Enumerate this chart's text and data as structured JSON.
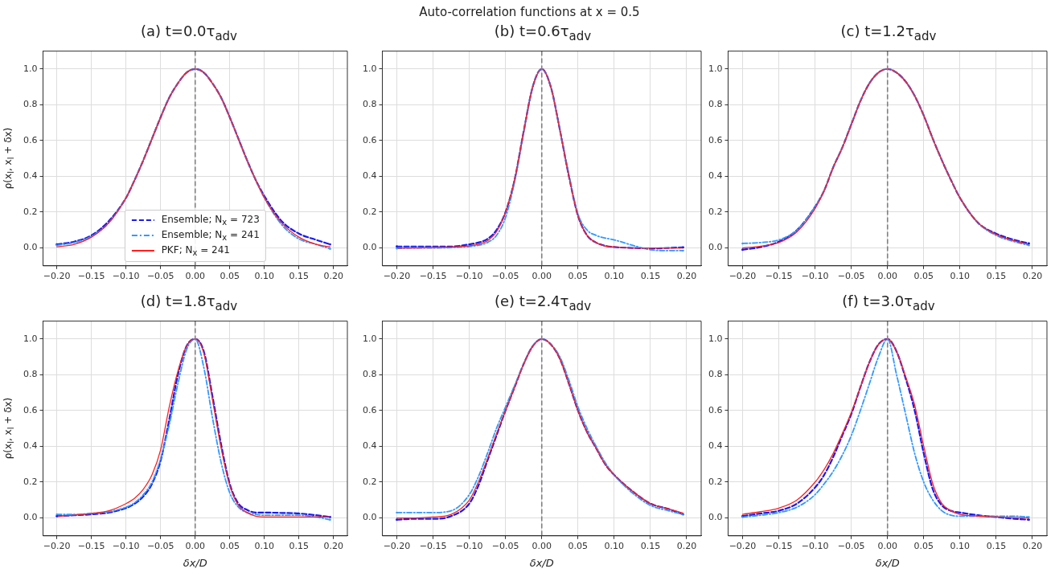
{
  "chart_data": [
    {
      "type": "line",
      "title": "(a) t=0.0τ$_{adv}$",
      "ylabel": "ρ(x$_{l}$, x$_{l}$ + δx)",
      "annotations": [
        "Auto-correlation functions at x = 0.5"
      ],
      "legend": "bottom",
      "grid": true,
      "xlim": [
        -0.22,
        0.22
      ],
      "ylim": [
        -0.1,
        1.1
      ],
      "xticks": [
        {
          "value": -0.2,
          "label": "−0.20"
        },
        {
          "value": -0.15,
          "label": "−0.15"
        },
        {
          "value": -0.1,
          "label": "−0.10"
        },
        {
          "value": -0.05,
          "label": "−0.05"
        },
        {
          "value": 0,
          "label": "0.00"
        },
        {
          "value": 0.05,
          "label": "0.05"
        },
        {
          "value": 0.1,
          "label": "0.10"
        },
        {
          "value": 0.15,
          "label": "0.15"
        },
        {
          "value": 0.2,
          "label": "0.20"
        }
      ],
      "yticks": [
        {
          "value": 0,
          "label": "0.0"
        },
        {
          "value": 0.2,
          "label": "0.2"
        },
        {
          "value": 0.4,
          "label": "0.4"
        },
        {
          "value": 0.6,
          "label": "0.6"
        },
        {
          "value": 0.8,
          "label": "0.8"
        },
        {
          "value": 1,
          "label": "1.0"
        }
      ],
      "ref_lines": [
        {
          "axis": "x",
          "value": 0,
          "color": "#808080",
          "line_style": "dashed"
        }
      ],
      "x": [
        -0.2,
        -0.175,
        -0.15,
        -0.125,
        -0.1,
        -0.0875,
        -0.075,
        -0.0625,
        -0.05,
        -0.0375,
        -0.025,
        -0.0125,
        0,
        0.0125,
        0.025,
        0.0375,
        0.05,
        0.0625,
        0.075,
        0.0875,
        0.1,
        0.125,
        0.15,
        0.175,
        0.195
      ],
      "series": [
        {
          "name": "Ensemble; N$_{x}$ = 723",
          "color": "#1a1aee",
          "line_style": "dashed",
          "values": [
            0.02,
            0.035,
            0.07,
            0.15,
            0.28,
            0.38,
            0.49,
            0.61,
            0.73,
            0.84,
            0.92,
            0.98,
            1,
            0.98,
            0.92,
            0.84,
            0.73,
            0.61,
            0.49,
            0.38,
            0.29,
            0.15,
            0.08,
            0.045,
            0.02
          ]
        },
        {
          "name": "Ensemble; N$_{x}$ = 241",
          "color": "#3399ff",
          "line_style": "dashdot",
          "values": [
            0.015,
            0.03,
            0.065,
            0.14,
            0.28,
            0.38,
            0.49,
            0.61,
            0.73,
            0.84,
            0.92,
            0.98,
            1,
            0.98,
            0.92,
            0.84,
            0.73,
            0.61,
            0.49,
            0.38,
            0.28,
            0.13,
            0.05,
            0.02,
            -0.005
          ]
        },
        {
          "name": "PKF; N$_{x}$ = 241",
          "color": "#ff2020",
          "line_style": "solid",
          "values": [
            0.006,
            0.02,
            0.06,
            0.14,
            0.28,
            0.38,
            0.49,
            0.61,
            0.73,
            0.84,
            0.92,
            0.98,
            1,
            0.98,
            0.92,
            0.84,
            0.73,
            0.61,
            0.49,
            0.38,
            0.28,
            0.14,
            0.06,
            0.02,
            0.006
          ]
        }
      ]
    },
    {
      "type": "line",
      "title": "(b) t=0.6τ$_{adv}$",
      "grid": true,
      "xlim": [
        -0.22,
        0.22
      ],
      "ylim": [
        -0.1,
        1.1
      ],
      "xticks": [
        {
          "value": -0.2,
          "label": "−0.20"
        },
        {
          "value": -0.15,
          "label": "−0.15"
        },
        {
          "value": -0.1,
          "label": "−0.10"
        },
        {
          "value": -0.05,
          "label": "−0.05"
        },
        {
          "value": 0,
          "label": "0.00"
        },
        {
          "value": 0.05,
          "label": "0.05"
        },
        {
          "value": 0.1,
          "label": "0.10"
        },
        {
          "value": 0.15,
          "label": "0.15"
        },
        {
          "value": 0.2,
          "label": "0.20"
        }
      ],
      "yticks": [
        {
          "value": 0,
          "label": "0.0"
        },
        {
          "value": 0.2,
          "label": "0.2"
        },
        {
          "value": 0.4,
          "label": "0.4"
        },
        {
          "value": 0.6,
          "label": "0.6"
        },
        {
          "value": 0.8,
          "label": "0.8"
        },
        {
          "value": 1,
          "label": "1.0"
        }
      ],
      "ref_lines": [
        {
          "axis": "x",
          "value": 0,
          "color": "#808080",
          "line_style": "dashed"
        }
      ],
      "x": [
        -0.2,
        -0.175,
        -0.15,
        -0.125,
        -0.1,
        -0.0875,
        -0.075,
        -0.0625,
        -0.05,
        -0.0375,
        -0.025,
        -0.0125,
        0,
        0.0125,
        0.025,
        0.0375,
        0.05,
        0.0625,
        0.075,
        0.0875,
        0.1,
        0.125,
        0.15,
        0.175,
        0.195
      ],
      "series": [
        {
          "color": "#1a1aee",
          "line_style": "dashed",
          "values": [
            0.008,
            0.008,
            0.008,
            0.008,
            0.02,
            0.03,
            0.05,
            0.1,
            0.2,
            0.38,
            0.65,
            0.9,
            1,
            0.9,
            0.66,
            0.4,
            0.18,
            0.07,
            0.03,
            0.012,
            0.005,
            0,
            -0.003,
            0,
            0.003
          ]
        },
        {
          "color": "#3399ff",
          "line_style": "dashdot",
          "values": [
            -0.003,
            0,
            0,
            0.002,
            0.008,
            0.015,
            0.03,
            0.07,
            0.17,
            0.37,
            0.64,
            0.9,
            1,
            0.9,
            0.66,
            0.41,
            0.19,
            0.1,
            0.07,
            0.055,
            0.045,
            0.015,
            -0.01,
            -0.015,
            -0.015
          ]
        },
        {
          "color": "#ff2020",
          "line_style": "solid",
          "values": [
            0,
            0,
            0.002,
            0.005,
            0.012,
            0.02,
            0.04,
            0.09,
            0.2,
            0.38,
            0.65,
            0.9,
            1,
            0.9,
            0.66,
            0.4,
            0.18,
            0.07,
            0.03,
            0.01,
            0.005,
            0,
            0,
            0,
            0
          ]
        }
      ]
    },
    {
      "type": "line",
      "title": "(c) t=1.2τ$_{adv}$",
      "grid": true,
      "xlim": [
        -0.22,
        0.22
      ],
      "ylim": [
        -0.1,
        1.1
      ],
      "xticks": [
        {
          "value": -0.2,
          "label": "−0.20"
        },
        {
          "value": -0.15,
          "label": "−0.15"
        },
        {
          "value": -0.1,
          "label": "−0.10"
        },
        {
          "value": -0.05,
          "label": "−0.05"
        },
        {
          "value": 0,
          "label": "0.00"
        },
        {
          "value": 0.05,
          "label": "0.05"
        },
        {
          "value": 0.1,
          "label": "0.10"
        },
        {
          "value": 0.15,
          "label": "0.15"
        },
        {
          "value": 0.2,
          "label": "0.20"
        }
      ],
      "yticks": [
        {
          "value": 0,
          "label": "0.0"
        },
        {
          "value": 0.2,
          "label": "0.2"
        },
        {
          "value": 0.4,
          "label": "0.4"
        },
        {
          "value": 0.6,
          "label": "0.6"
        },
        {
          "value": 0.8,
          "label": "0.8"
        },
        {
          "value": 1,
          "label": "1.0"
        }
      ],
      "ref_lines": [
        {
          "axis": "x",
          "value": 0,
          "color": "#808080",
          "line_style": "dashed"
        }
      ],
      "x": [
        -0.2,
        -0.175,
        -0.15,
        -0.125,
        -0.1,
        -0.0875,
        -0.075,
        -0.0625,
        -0.05,
        -0.0375,
        -0.025,
        -0.0125,
        0,
        0.0125,
        0.025,
        0.0375,
        0.05,
        0.0625,
        0.075,
        0.0875,
        0.1,
        0.125,
        0.15,
        0.175,
        0.195
      ],
      "series": [
        {
          "color": "#1a1aee",
          "line_style": "dashed",
          "values": [
            -0.01,
            0.005,
            0.035,
            0.1,
            0.23,
            0.32,
            0.45,
            0.56,
            0.69,
            0.82,
            0.92,
            0.98,
            1,
            0.98,
            0.93,
            0.85,
            0.74,
            0.61,
            0.49,
            0.38,
            0.28,
            0.14,
            0.08,
            0.045,
            0.025
          ]
        },
        {
          "color": "#3399ff",
          "line_style": "dashdot",
          "values": [
            0.025,
            0.03,
            0.045,
            0.1,
            0.23,
            0.32,
            0.45,
            0.56,
            0.69,
            0.82,
            0.92,
            0.98,
            1,
            0.98,
            0.93,
            0.85,
            0.74,
            0.61,
            0.49,
            0.38,
            0.28,
            0.14,
            0.07,
            0.035,
            0.015
          ]
        },
        {
          "color": "#ff2020",
          "line_style": "solid",
          "values": [
            0,
            0.01,
            0.03,
            0.09,
            0.22,
            0.32,
            0.45,
            0.56,
            0.69,
            0.82,
            0.92,
            0.98,
            1,
            0.98,
            0.93,
            0.85,
            0.74,
            0.61,
            0.49,
            0.38,
            0.28,
            0.14,
            0.075,
            0.04,
            0.02
          ]
        }
      ]
    },
    {
      "type": "line",
      "title": "(d) t=1.8τ$_{adv}$",
      "ylabel": "ρ(x$_{l}$, x$_{l}$ + δx)",
      "xlabel": "δx/D",
      "grid": true,
      "xlim": [
        -0.22,
        0.22
      ],
      "ylim": [
        -0.1,
        1.1
      ],
      "xticks": [
        {
          "value": -0.2,
          "label": "−0.20"
        },
        {
          "value": -0.15,
          "label": "−0.15"
        },
        {
          "value": -0.1,
          "label": "−0.10"
        },
        {
          "value": -0.05,
          "label": "−0.05"
        },
        {
          "value": 0,
          "label": "0.00"
        },
        {
          "value": 0.05,
          "label": "0.05"
        },
        {
          "value": 0.1,
          "label": "0.10"
        },
        {
          "value": 0.15,
          "label": "0.15"
        },
        {
          "value": 0.2,
          "label": "0.20"
        }
      ],
      "yticks": [
        {
          "value": 0,
          "label": "0.0"
        },
        {
          "value": 0.2,
          "label": "0.2"
        },
        {
          "value": 0.4,
          "label": "0.4"
        },
        {
          "value": 0.6,
          "label": "0.6"
        },
        {
          "value": 0.8,
          "label": "0.8"
        },
        {
          "value": 1,
          "label": "1.0"
        }
      ],
      "ref_lines": [
        {
          "axis": "x",
          "value": 0,
          "color": "#808080",
          "line_style": "dashed"
        }
      ],
      "x": [
        -0.2,
        -0.175,
        -0.15,
        -0.125,
        -0.1,
        -0.0875,
        -0.075,
        -0.0625,
        -0.05,
        -0.0375,
        -0.025,
        -0.0125,
        0,
        0.0125,
        0.025,
        0.0375,
        0.05,
        0.0625,
        0.075,
        0.0875,
        0.1,
        0.125,
        0.15,
        0.175,
        0.195
      ],
      "series": [
        {
          "color": "#1a1aee",
          "line_style": "dashed",
          "values": [
            0.01,
            0.015,
            0.02,
            0.03,
            0.055,
            0.08,
            0.12,
            0.19,
            0.32,
            0.55,
            0.8,
            0.96,
            1,
            0.93,
            0.68,
            0.41,
            0.19,
            0.08,
            0.045,
            0.03,
            0.03,
            0.028,
            0.025,
            0.015,
            0.005
          ]
        },
        {
          "color": "#3399ff",
          "line_style": "dashdot",
          "values": [
            0.02,
            0.02,
            0.025,
            0.035,
            0.06,
            0.085,
            0.13,
            0.2,
            0.33,
            0.52,
            0.75,
            0.94,
            1,
            0.84,
            0.56,
            0.31,
            0.14,
            0.06,
            0.03,
            0.02,
            0.015,
            0.015,
            0.015,
            0.005,
            -0.01
          ]
        },
        {
          "color": "#ff2020",
          "line_style": "solid",
          "values": [
            0.01,
            0.015,
            0.025,
            0.04,
            0.08,
            0.11,
            0.16,
            0.24,
            0.38,
            0.62,
            0.82,
            0.96,
            1,
            0.92,
            0.66,
            0.39,
            0.18,
            0.07,
            0.03,
            0.01,
            0.005,
            0.005,
            0.005,
            0.005,
            0.005
          ]
        }
      ]
    },
    {
      "type": "line",
      "title": "(e) t=2.4τ$_{adv}$",
      "xlabel": "δx/D",
      "grid": true,
      "xlim": [
        -0.22,
        0.22
      ],
      "ylim": [
        -0.1,
        1.1
      ],
      "xticks": [
        {
          "value": -0.2,
          "label": "−0.20"
        },
        {
          "value": -0.15,
          "label": "−0.15"
        },
        {
          "value": -0.1,
          "label": "−0.10"
        },
        {
          "value": -0.05,
          "label": "−0.05"
        },
        {
          "value": 0,
          "label": "0.00"
        },
        {
          "value": 0.05,
          "label": "0.05"
        },
        {
          "value": 0.1,
          "label": "0.10"
        },
        {
          "value": 0.15,
          "label": "0.15"
        },
        {
          "value": 0.2,
          "label": "0.20"
        }
      ],
      "yticks": [
        {
          "value": 0,
          "label": "0.0"
        },
        {
          "value": 0.2,
          "label": "0.2"
        },
        {
          "value": 0.4,
          "label": "0.4"
        },
        {
          "value": 0.6,
          "label": "0.6"
        },
        {
          "value": 0.8,
          "label": "0.8"
        },
        {
          "value": 1,
          "label": "1.0"
        }
      ],
      "ref_lines": [
        {
          "axis": "x",
          "value": 0,
          "color": "#808080",
          "line_style": "dashed"
        }
      ],
      "x": [
        -0.2,
        -0.175,
        -0.15,
        -0.125,
        -0.1,
        -0.0875,
        -0.075,
        -0.0625,
        -0.05,
        -0.0375,
        -0.025,
        -0.0125,
        0,
        0.0125,
        0.025,
        0.0375,
        0.05,
        0.0625,
        0.075,
        0.0875,
        0.1,
        0.125,
        0.15,
        0.175,
        0.195
      ],
      "series": [
        {
          "color": "#1a1aee",
          "line_style": "dashed",
          "values": [
            -0.01,
            -0.005,
            -0.005,
            0.01,
            0.08,
            0.18,
            0.32,
            0.46,
            0.6,
            0.73,
            0.86,
            0.96,
            1,
            0.97,
            0.89,
            0.75,
            0.6,
            0.48,
            0.39,
            0.3,
            0.24,
            0.15,
            0.08,
            0.05,
            0.02
          ]
        },
        {
          "color": "#3399ff",
          "line_style": "dashdot",
          "values": [
            0.03,
            0.03,
            0.03,
            0.04,
            0.13,
            0.23,
            0.36,
            0.5,
            0.62,
            0.74,
            0.86,
            0.96,
            1,
            0.97,
            0.9,
            0.77,
            0.62,
            0.5,
            0.4,
            0.31,
            0.24,
            0.14,
            0.07,
            0.04,
            0.02
          ]
        },
        {
          "color": "#ff2020",
          "line_style": "solid",
          "values": [
            0,
            0,
            0.005,
            0.02,
            0.1,
            0.2,
            0.33,
            0.47,
            0.6,
            0.73,
            0.86,
            0.96,
            1,
            0.97,
            0.89,
            0.75,
            0.6,
            0.48,
            0.39,
            0.3,
            0.24,
            0.15,
            0.08,
            0.05,
            0.027
          ]
        }
      ]
    },
    {
      "type": "line",
      "title": "(f) t=3.0τ$_{adv}$",
      "xlabel": "δx/D",
      "grid": true,
      "xlim": [
        -0.22,
        0.22
      ],
      "ylim": [
        -0.1,
        1.1
      ],
      "xticks": [
        {
          "value": -0.2,
          "label": "−0.20"
        },
        {
          "value": -0.15,
          "label": "−0.15"
        },
        {
          "value": -0.1,
          "label": "−0.10"
        },
        {
          "value": -0.05,
          "label": "−0.05"
        },
        {
          "value": 0,
          "label": "0.00"
        },
        {
          "value": 0.05,
          "label": "0.05"
        },
        {
          "value": 0.1,
          "label": "0.10"
        },
        {
          "value": 0.15,
          "label": "0.15"
        },
        {
          "value": 0.2,
          "label": "0.20"
        }
      ],
      "yticks": [
        {
          "value": 0,
          "label": "0.0"
        },
        {
          "value": 0.2,
          "label": "0.2"
        },
        {
          "value": 0.4,
          "label": "0.4"
        },
        {
          "value": 0.6,
          "label": "0.6"
        },
        {
          "value": 0.8,
          "label": "0.8"
        },
        {
          "value": 1,
          "label": "1.0"
        }
      ],
      "ref_lines": [
        {
          "axis": "x",
          "value": 0,
          "color": "#808080",
          "line_style": "dashed"
        }
      ],
      "x": [
        -0.2,
        -0.175,
        -0.15,
        -0.125,
        -0.1,
        -0.0875,
        -0.075,
        -0.0625,
        -0.05,
        -0.0375,
        -0.025,
        -0.0125,
        0,
        0.0125,
        0.025,
        0.0375,
        0.05,
        0.0625,
        0.075,
        0.0875,
        0.1,
        0.125,
        0.15,
        0.175,
        0.195
      ],
      "series": [
        {
          "color": "#1a1aee",
          "line_style": "dashed",
          "values": [
            0.01,
            0.025,
            0.04,
            0.08,
            0.17,
            0.24,
            0.34,
            0.46,
            0.58,
            0.73,
            0.87,
            0.97,
            1,
            0.93,
            0.78,
            0.6,
            0.36,
            0.16,
            0.07,
            0.04,
            0.03,
            0.015,
            0.005,
            -0.005,
            -0.01
          ]
        },
        {
          "color": "#3399ff",
          "line_style": "dashdot",
          "values": [
            0.005,
            0.015,
            0.03,
            0.06,
            0.13,
            0.19,
            0.26,
            0.35,
            0.46,
            0.6,
            0.75,
            0.9,
            1,
            0.8,
            0.58,
            0.36,
            0.2,
            0.1,
            0.04,
            0.015,
            0.01,
            0.01,
            0.01,
            0.01,
            0.005
          ]
        },
        {
          "color": "#ff2020",
          "line_style": "solid",
          "values": [
            0.02,
            0.035,
            0.055,
            0.1,
            0.2,
            0.27,
            0.36,
            0.47,
            0.59,
            0.73,
            0.87,
            0.97,
            1,
            0.93,
            0.79,
            0.63,
            0.4,
            0.19,
            0.08,
            0.04,
            0.02,
            0.01,
            0.005,
            0.002,
            0
          ]
        }
      ]
    }
  ]
}
